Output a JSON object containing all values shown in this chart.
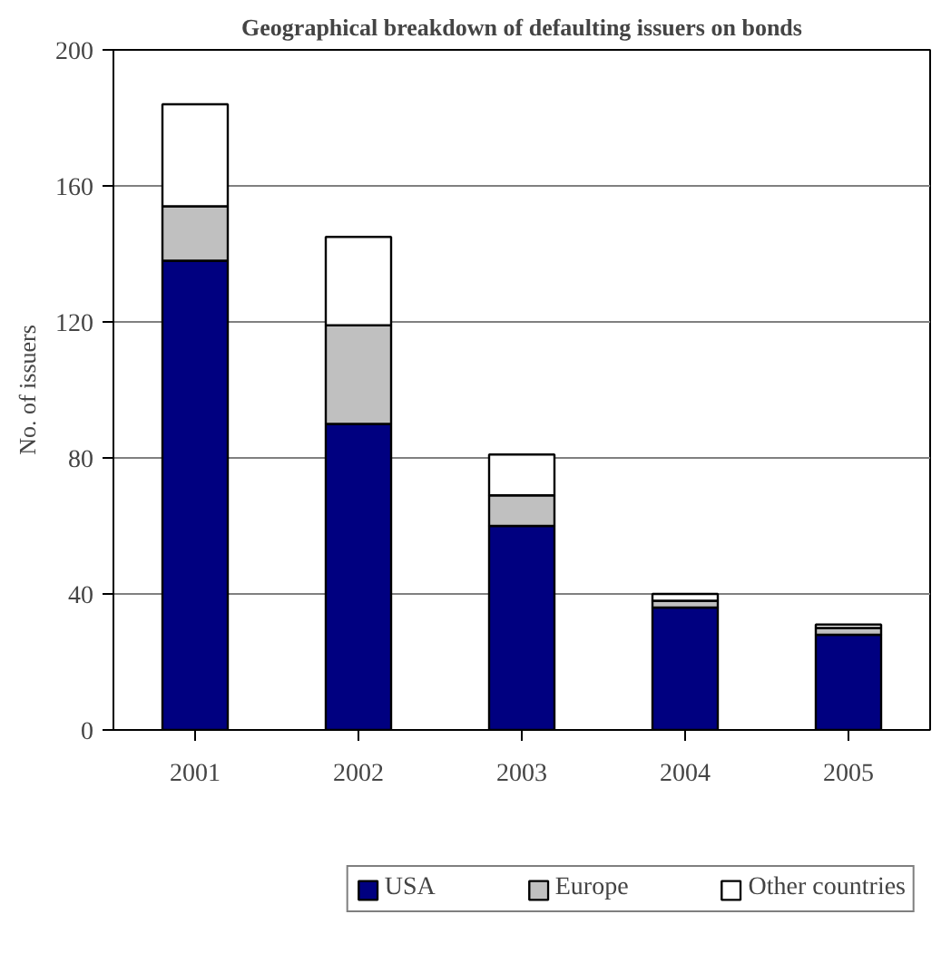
{
  "chart_data": {
    "type": "bar",
    "stacked": true,
    "title": "Geographical breakdown of defaulting issuers on bonds",
    "ylabel": "No. of issuers",
    "categories": [
      "2001",
      "2002",
      "2003",
      "2004",
      "2005"
    ],
    "series": [
      {
        "name": "USA",
        "color": "#000080",
        "values": [
          138,
          90,
          60,
          36,
          28
        ]
      },
      {
        "name": "Europe",
        "color": "#c0c0c0",
        "values": [
          16,
          29,
          9,
          2,
          2
        ]
      },
      {
        "name": "Other countries",
        "color": "#ffffff",
        "values": [
          30,
          26,
          12,
          2,
          1
        ]
      }
    ],
    "ylim": [
      0,
      200
    ],
    "yticks": [
      0,
      40,
      80,
      120,
      160,
      200
    ],
    "grid": "y",
    "legend": "bottom"
  }
}
